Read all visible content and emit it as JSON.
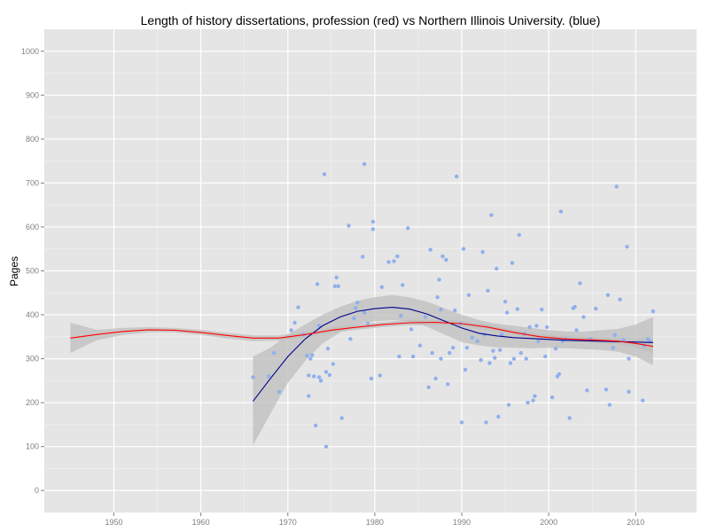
{
  "chart_data": {
    "type": "scatter",
    "title": "Length of history dissertations, profession (red) vs Northern Illinois University. (blue)",
    "xlabel": "",
    "ylabel": "Pages",
    "xlim": [
      1942,
      2017
    ],
    "ylim": [
      -50,
      1050
    ],
    "x_ticks": [
      1950,
      1960,
      1970,
      1980,
      1990,
      2000,
      2010
    ],
    "y_ticks": [
      0,
      100,
      200,
      300,
      400,
      500,
      600,
      700,
      800,
      900,
      1000
    ],
    "grid": true,
    "colors": {
      "panel": "#e5e5e5",
      "grid_major": "#ffffff",
      "grid_minor": "#f2f2f2",
      "points": "#8fb0ec",
      "niu_line": "#00008b",
      "profession_line": "#ff0000",
      "ribbon": "#bdbdbd"
    },
    "series": [
      {
        "name": "Northern Illinois University",
        "type": "scatter",
        "points": [
          [
            1966,
            258
          ],
          [
            1967.8,
            260
          ],
          [
            1968.4,
            313
          ],
          [
            1969,
            225
          ],
          [
            1970.4,
            365
          ],
          [
            1970.8,
            382
          ],
          [
            1971.2,
            417
          ],
          [
            1971.8,
            355
          ],
          [
            1972.2,
            307
          ],
          [
            1972.4,
            262
          ],
          [
            1972.4,
            215
          ],
          [
            1972.6,
            300
          ],
          [
            1972.8,
            308
          ],
          [
            1973,
            260
          ],
          [
            1973.2,
            148
          ],
          [
            1973.4,
            470
          ],
          [
            1973.6,
            375
          ],
          [
            1973.6,
            258
          ],
          [
            1973.8,
            250
          ],
          [
            1974.2,
            720
          ],
          [
            1974.4,
            270
          ],
          [
            1974.4,
            100
          ],
          [
            1974.6,
            323
          ],
          [
            1974.8,
            263
          ],
          [
            1975.2,
            288
          ],
          [
            1975.4,
            465
          ],
          [
            1975.6,
            485
          ],
          [
            1975.8,
            465
          ],
          [
            1976.2,
            165
          ],
          [
            1977,
            603
          ],
          [
            1977.2,
            345
          ],
          [
            1977.6,
            392
          ],
          [
            1977.8,
            415
          ],
          [
            1978,
            428
          ],
          [
            1978.6,
            532
          ],
          [
            1978.8,
            743
          ],
          [
            1978.8,
            405
          ],
          [
            1979.2,
            380
          ],
          [
            1979.6,
            255
          ],
          [
            1979.8,
            595
          ],
          [
            1979.8,
            612
          ],
          [
            1980.6,
            262
          ],
          [
            1980.8,
            463
          ],
          [
            1981.6,
            520
          ],
          [
            1982.2,
            522
          ],
          [
            1982.6,
            533
          ],
          [
            1982.8,
            305
          ],
          [
            1983,
            398
          ],
          [
            1983.2,
            468
          ],
          [
            1983.8,
            597
          ],
          [
            1984.2,
            367
          ],
          [
            1984.4,
            305
          ],
          [
            1985.2,
            330
          ],
          [
            1985.8,
            395
          ],
          [
            1986.2,
            235
          ],
          [
            1986.4,
            548
          ],
          [
            1986.6,
            313
          ],
          [
            1987,
            255
          ],
          [
            1987.2,
            440
          ],
          [
            1987.4,
            480
          ],
          [
            1987.6,
            300
          ],
          [
            1987.6,
            412
          ],
          [
            1987.8,
            533
          ],
          [
            1988.2,
            525
          ],
          [
            1988.4,
            242
          ],
          [
            1988.6,
            313
          ],
          [
            1989,
            325
          ],
          [
            1989.2,
            410
          ],
          [
            1989.4,
            715
          ],
          [
            1989.8,
            380
          ],
          [
            1990,
            155
          ],
          [
            1990.2,
            550
          ],
          [
            1990.4,
            275
          ],
          [
            1990.6,
            325
          ],
          [
            1990.8,
            445
          ],
          [
            1991.2,
            348
          ],
          [
            1991.8,
            340
          ],
          [
            1992.2,
            297
          ],
          [
            1992.4,
            543
          ],
          [
            1992.6,
            355
          ],
          [
            1992.8,
            155
          ],
          [
            1993,
            455
          ],
          [
            1993.2,
            290
          ],
          [
            1993.4,
            627
          ],
          [
            1993.6,
            318
          ],
          [
            1993.8,
            302
          ],
          [
            1994,
            505
          ],
          [
            1994.2,
            168
          ],
          [
            1994.4,
            320
          ],
          [
            1994.6,
            355
          ],
          [
            1995,
            430
          ],
          [
            1995.2,
            405
          ],
          [
            1995.4,
            195
          ],
          [
            1995.6,
            290
          ],
          [
            1995.8,
            518
          ],
          [
            1996,
            300
          ],
          [
            1996.4,
            413
          ],
          [
            1996.6,
            582
          ],
          [
            1996.8,
            313
          ],
          [
            1997.2,
            357
          ],
          [
            1997.4,
            300
          ],
          [
            1997.6,
            200
          ],
          [
            1997.8,
            372
          ],
          [
            1998.2,
            205
          ],
          [
            1998.4,
            215
          ],
          [
            1998.6,
            375
          ],
          [
            1998.8,
            340
          ],
          [
            1999.2,
            412
          ],
          [
            1999.6,
            305
          ],
          [
            1999.8,
            372
          ],
          [
            2000.4,
            212
          ],
          [
            2000.8,
            323
          ],
          [
            2001,
            260
          ],
          [
            2001.2,
            265
          ],
          [
            2001.4,
            635
          ],
          [
            2001.6,
            340
          ],
          [
            2002,
            345
          ],
          [
            2002.4,
            165
          ],
          [
            2002.8,
            415
          ],
          [
            2003,
            418
          ],
          [
            2003.2,
            365
          ],
          [
            2003.6,
            472
          ],
          [
            2004,
            395
          ],
          [
            2004.4,
            228
          ],
          [
            2004.8,
            345
          ],
          [
            2005.4,
            414
          ],
          [
            2006.6,
            230
          ],
          [
            2006.8,
            445
          ],
          [
            2007,
            195
          ],
          [
            2007.4,
            325
          ],
          [
            2007.6,
            354
          ],
          [
            2007.8,
            692
          ],
          [
            2008.2,
            435
          ],
          [
            2008.6,
            343
          ],
          [
            2009,
            555
          ],
          [
            2009.2,
            225
          ],
          [
            2009.2,
            300
          ],
          [
            2010.8,
            205
          ],
          [
            2011,
            330
          ],
          [
            2011.4,
            345
          ],
          [
            2011.6,
            340
          ],
          [
            2012,
            408
          ]
        ]
      },
      {
        "name": "NIU smooth",
        "type": "line",
        "points": [
          [
            1966,
            203
          ],
          [
            1968,
            255
          ],
          [
            1970,
            305
          ],
          [
            1972,
            345
          ],
          [
            1974,
            375
          ],
          [
            1976,
            395
          ],
          [
            1978,
            408
          ],
          [
            1980,
            414
          ],
          [
            1982,
            417
          ],
          [
            1984,
            413
          ],
          [
            1986,
            402
          ],
          [
            1988,
            386
          ],
          [
            1990,
            370
          ],
          [
            1992,
            358
          ],
          [
            1994,
            352
          ],
          [
            1996,
            348
          ],
          [
            1998,
            346
          ],
          [
            2000,
            344
          ],
          [
            2002,
            342
          ],
          [
            2004,
            341
          ],
          [
            2006,
            340
          ],
          [
            2008,
            339
          ],
          [
            2010,
            338
          ],
          [
            2012,
            337
          ]
        ],
        "band": [
          [
            1966,
            103,
            305
          ],
          [
            1968,
            175,
            325
          ],
          [
            1970,
            245,
            355
          ],
          [
            1972,
            295,
            378
          ],
          [
            1974,
            335,
            400
          ],
          [
            1976,
            360,
            418
          ],
          [
            1978,
            378,
            432
          ],
          [
            1980,
            385,
            440
          ],
          [
            1982,
            388,
            445
          ],
          [
            1984,
            385,
            440
          ],
          [
            1986,
            373,
            430
          ],
          [
            1988,
            355,
            415
          ],
          [
            1990,
            338,
            400
          ],
          [
            1992,
            330,
            388
          ],
          [
            1994,
            326,
            380
          ],
          [
            1996,
            325,
            375
          ],
          [
            1998,
            324,
            370
          ],
          [
            2000,
            325,
            365
          ],
          [
            2002,
            324,
            362
          ],
          [
            2004,
            322,
            362
          ],
          [
            2006,
            320,
            365
          ],
          [
            2008,
            316,
            368
          ],
          [
            2010,
            305,
            378
          ],
          [
            2012,
            285,
            395
          ]
        ]
      },
      {
        "name": "Profession smooth",
        "type": "line",
        "points": [
          [
            1945,
            347
          ],
          [
            1948,
            355
          ],
          [
            1951,
            362
          ],
          [
            1954,
            366
          ],
          [
            1957,
            365
          ],
          [
            1960,
            360
          ],
          [
            1963,
            353
          ],
          [
            1966,
            347
          ],
          [
            1969,
            347
          ],
          [
            1972,
            355
          ],
          [
            1975,
            365
          ],
          [
            1978,
            372
          ],
          [
            1981,
            378
          ],
          [
            1984,
            382
          ],
          [
            1987,
            383
          ],
          [
            1990,
            380
          ],
          [
            1993,
            372
          ],
          [
            1996,
            360
          ],
          [
            1999,
            350
          ],
          [
            2002,
            345
          ],
          [
            2005,
            343
          ],
          [
            2008,
            340
          ],
          [
            2010,
            335
          ],
          [
            2012,
            328
          ]
        ],
        "band": [
          [
            1945,
            313,
            382
          ],
          [
            1948,
            342,
            366
          ],
          [
            1951,
            354,
            370
          ],
          [
            1954,
            360,
            372
          ],
          [
            1957,
            360,
            370
          ],
          [
            1960,
            354,
            366
          ],
          [
            1963,
            346,
            359
          ],
          [
            1966,
            340,
            353
          ],
          [
            1969,
            341,
            353
          ],
          [
            1972,
            349,
            361
          ],
          [
            1975,
            359,
            371
          ],
          [
            1978,
            366,
            378
          ],
          [
            1981,
            372,
            384
          ],
          [
            1984,
            376,
            388
          ],
          [
            1987,
            377,
            389
          ],
          [
            1990,
            374,
            386
          ],
          [
            1993,
            366,
            378
          ],
          [
            1996,
            354,
            366
          ],
          [
            1999,
            344,
            356
          ],
          [
            2002,
            339,
            351
          ],
          [
            2005,
            337,
            349
          ],
          [
            2008,
            333,
            347
          ],
          [
            2010,
            326,
            344
          ],
          [
            2012,
            313,
            345
          ]
        ]
      }
    ]
  }
}
